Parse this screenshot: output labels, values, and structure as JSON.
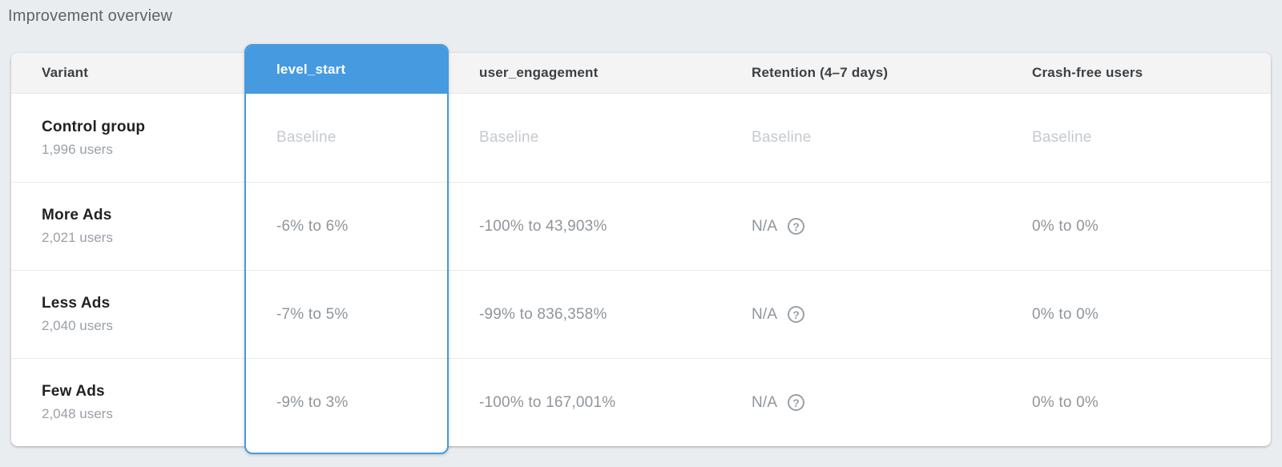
{
  "page": {
    "title": "Improvement overview"
  },
  "colors": {
    "accent_blue": "#459ae0",
    "page_bg": "#eaedf0",
    "card_bg": "#ffffff"
  },
  "icons": {
    "help_glyph": "?"
  },
  "table": {
    "columns": [
      {
        "id": "variant",
        "label": "Variant",
        "selected": false
      },
      {
        "id": "level_start",
        "label": "level_start",
        "selected": true
      },
      {
        "id": "user_engagement",
        "label": "user_engagement",
        "selected": false
      },
      {
        "id": "retention",
        "label": "Retention (4–7 days)",
        "selected": false
      },
      {
        "id": "crash_free_users",
        "label": "Crash-free users",
        "selected": false
      }
    ],
    "rows": [
      {
        "variant": "Control group",
        "users": "1,996 users",
        "level_start": "Baseline",
        "user_engagement": "Baseline",
        "retention": "Baseline",
        "crash_free_users": "Baseline",
        "is_baseline": true
      },
      {
        "variant": "More Ads",
        "users": "2,021 users",
        "level_start": "-6% to 6%",
        "user_engagement": "-100% to 43,903%",
        "retention": "N/A",
        "crash_free_users": "0% to 0%",
        "is_baseline": false
      },
      {
        "variant": "Less Ads",
        "users": "2,040 users",
        "level_start": "-7% to 5%",
        "user_engagement": "-99% to 836,358%",
        "retention": "N/A",
        "crash_free_users": "0% to 0%",
        "is_baseline": false
      },
      {
        "variant": "Few Ads",
        "users": "2,048 users",
        "level_start": "-9% to 3%",
        "user_engagement": "-100% to 167,001%",
        "retention": "N/A",
        "crash_free_users": "0% to 0%",
        "is_baseline": false
      }
    ]
  }
}
